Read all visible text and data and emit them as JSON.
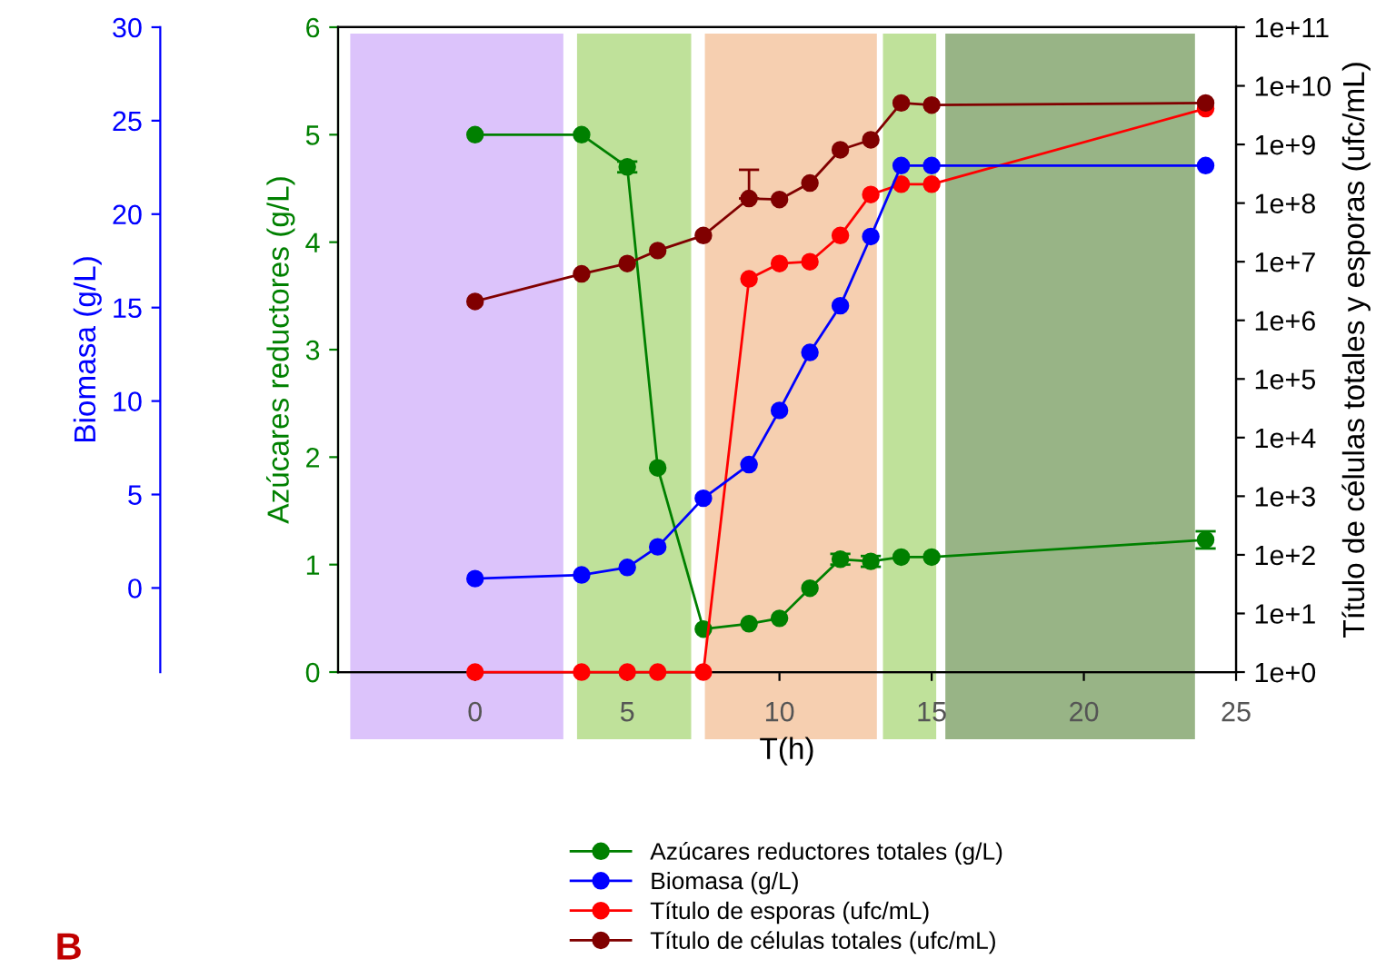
{
  "chart_data": {
    "type": "line",
    "xlabel": "T(h)",
    "ylabel": "Azúcares reductores (g/L)",
    "y2label": "Título de células totales y esporas (ufc/mL)",
    "y3label": "Biomasa (g/L)",
    "x": [
      0,
      3.5,
      5,
      6,
      7.5,
      9,
      10,
      11,
      12,
      13,
      14,
      15,
      24
    ],
    "xlim": [
      -4.5,
      25
    ],
    "xticks": [
      0,
      5,
      10,
      15,
      20,
      25
    ],
    "ylim": [
      0,
      6
    ],
    "yticks": [
      0,
      1,
      2,
      3,
      4,
      5,
      6
    ],
    "y3lim": [
      -4.5,
      30
    ],
    "y3ticks": [
      0,
      5,
      10,
      15,
      20,
      25,
      30
    ],
    "y2lim": [
      1,
      100000000000.0
    ],
    "log": "y2",
    "y2ticks": [
      {
        "value": 1,
        "label": "1e+0"
      },
      {
        "value": 10,
        "label": "1e+1"
      },
      {
        "value": 100,
        "label": "1e+2"
      },
      {
        "value": 1000,
        "label": "1e+3"
      },
      {
        "value": 10000,
        "label": "1e+4"
      },
      {
        "value": 100000,
        "label": "1e+5"
      },
      {
        "value": 1000000,
        "label": "1e+6"
      },
      {
        "value": 10000000,
        "label": "1e+7"
      },
      {
        "value": 100000000,
        "label": "1e+8"
      },
      {
        "value": 1000000000,
        "label": "1e+9"
      },
      {
        "value": 10000000000,
        "label": "1e+10"
      },
      {
        "value": 100000000000,
        "label": "1e+11"
      }
    ],
    "marker": "circle",
    "legend": "bottom",
    "series": [
      {
        "name": "Azúcares reductores totales (g/L)",
        "color": "#008000",
        "axis": "y",
        "values": [
          5.0,
          5.0,
          4.7,
          1.9,
          0.4,
          0.45,
          0.5,
          0.78,
          1.05,
          1.03,
          1.07,
          1.07,
          1.23
        ],
        "errors": [
          null,
          null,
          0.05,
          null,
          null,
          null,
          null,
          null,
          0.05,
          0.05,
          null,
          null,
          0.08
        ]
      },
      {
        "name": "Biomasa (g/L)",
        "color": "#0000ff",
        "axis": "y3",
        "values": [
          0.5,
          0.7,
          1.1,
          2.2,
          4.8,
          6.6,
          9.5,
          12.6,
          15.1,
          18.8,
          22.6,
          22.6,
          22.6
        ]
      },
      {
        "name": "Título de esporas (ufc/mL)",
        "color": "#ff0000",
        "axis": "y2",
        "values": [
          1,
          1,
          1,
          1,
          1,
          5100000,
          9300000,
          10000000,
          28000000,
          140000000,
          210000000,
          210000000,
          4100000000
        ]
      },
      {
        "name": "Título de células totales (ufc/mL)",
        "color": "#800000",
        "axis": "y2",
        "values": [
          2100000,
          6200000,
          9300000,
          15500000,
          28000000,
          120000000,
          115000000,
          220000000,
          810000000,
          1200000000,
          5100000000,
          4700000000,
          5100000000
        ],
        "errors": [
          null,
          null,
          null,
          null,
          null,
          [
            120000000,
            370000000
          ],
          null,
          null,
          null,
          null,
          null,
          null,
          null
        ]
      }
    ],
    "bands": [
      {
        "axis": "x",
        "from": -4.1,
        "to": 2.9,
        "color": "#dcc3fb"
      },
      {
        "axis": "x",
        "from": 3.35,
        "to": 7.1,
        "color": "#bfe19a"
      },
      {
        "axis": "x",
        "from": 7.55,
        "to": 13.2,
        "color": "#f6cfb0"
      },
      {
        "axis": "x",
        "from": 13.4,
        "to": 15.15,
        "color": "#bfe19a"
      },
      {
        "axis": "x",
        "from": 15.45,
        "to": 23.65,
        "color": "#98b486"
      }
    ],
    "annotations": [
      "B"
    ]
  }
}
